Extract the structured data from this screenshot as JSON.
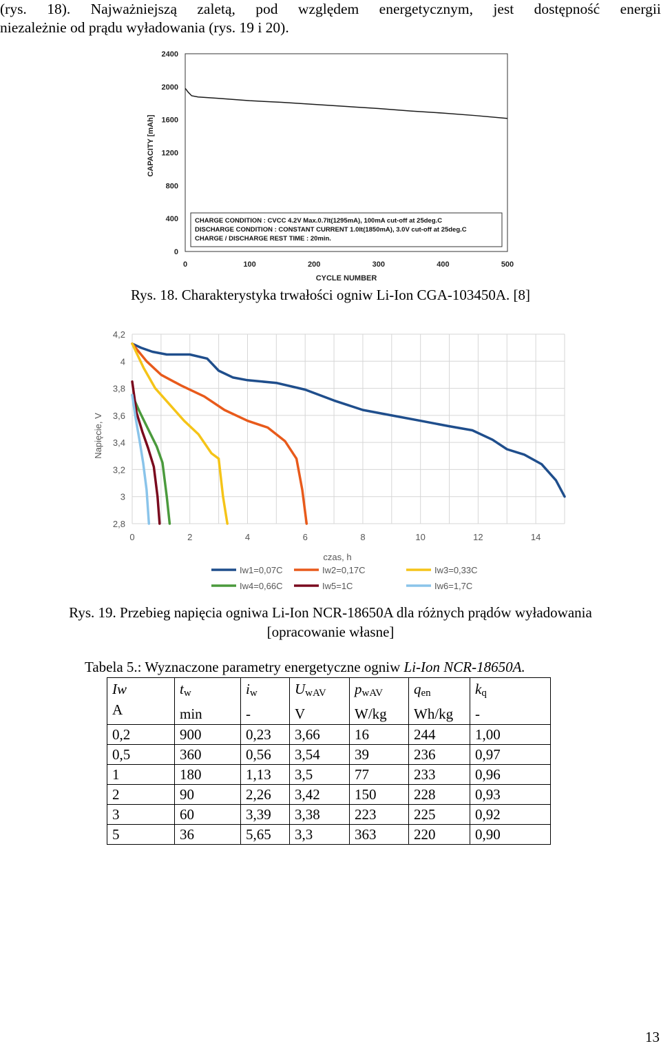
{
  "intro": {
    "line1_words": [
      "(rys.",
      "18).",
      "Najważniejszą",
      "zaletą,",
      "pod",
      "względem",
      "energetycznym,",
      "jest",
      "dostępność",
      "energii"
    ],
    "line2": "niezależnie od prądu wyładowania (rys. 19 i 20)."
  },
  "figure18": {
    "caption": "Rys. 18. Charakterystyka trwałości ogniw Li-Ion CGA-103450A. [8]",
    "chart_data": {
      "type": "line",
      "xlabel": "CYCLE NUMBER",
      "ylabel": "CAPACITY  [mAh]",
      "xlim": [
        0,
        500
      ],
      "ylim": [
        0,
        2400
      ],
      "x_ticks": [
        "0",
        "100",
        "200",
        "300",
        "400",
        "500"
      ],
      "y_ticks": [
        "0",
        "400",
        "800",
        "1200",
        "1600",
        "2000",
        "2400"
      ],
      "grid": false,
      "series": [
        {
          "x": [
            0,
            5,
            10,
            20,
            50,
            100,
            150,
            200,
            250,
            300,
            350,
            400,
            450,
            500
          ],
          "y": [
            1980,
            1930,
            1890,
            1875,
            1860,
            1830,
            1810,
            1785,
            1760,
            1735,
            1705,
            1680,
            1650,
            1615
          ],
          "color": "#1a1a1a"
        }
      ],
      "annotations": [
        "CHARGE CONDITION        : CVCC 4.2V Max.0.7It(1295mA), 100mA cut-off at 25deg.C",
        "DISCHARGE CONDITION : CONSTANT CURRENT 1.0It(1850mA), 3.0V cut-off at 25deg.C",
        "CHARGE / DISCHARGE REST TIME : 20min."
      ]
    }
  },
  "figure19": {
    "caption_line1": "Rys. 19. Przebieg napięcia ogniwa Li-Ion NCR-18650A dla różnych prądów wyładowania",
    "caption_line2": "[opracowanie własne]",
    "chart_data": {
      "type": "line",
      "xlabel": "czas, h",
      "ylabel": "Napięcie, V",
      "xlim": [
        0,
        15
      ],
      "ylim": [
        2.8,
        4.2
      ],
      "x_ticks": [
        "0",
        "2",
        "4",
        "6",
        "8",
        "10",
        "12",
        "14"
      ],
      "y_ticks": [
        "2,8",
        "3",
        "3,2",
        "3,4",
        "3,6",
        "3,8",
        "4",
        "4,2"
      ],
      "grid": true,
      "legend_position": "bottom",
      "series": [
        {
          "name": "Iw1=0,07C",
          "color": "#1f4e8c",
          "x": [
            0,
            0.3,
            0.7,
            1.2,
            2,
            2.6,
            3,
            3.5,
            4,
            5,
            6,
            7,
            8,
            9,
            10,
            11,
            11.8,
            12.5,
            13,
            13.6,
            14.2,
            14.7,
            15
          ],
          "y": [
            4.13,
            4.1,
            4.07,
            4.05,
            4.05,
            4.02,
            3.93,
            3.88,
            3.86,
            3.84,
            3.79,
            3.71,
            3.64,
            3.6,
            3.56,
            3.52,
            3.49,
            3.42,
            3.35,
            3.31,
            3.24,
            3.12,
            3.0
          ]
        },
        {
          "name": "Iw2=0,17C",
          "color": "#e85a1b",
          "x": [
            0,
            0.5,
            1,
            1.7,
            2.5,
            3.2,
            4,
            4.7,
            5.3,
            5.7,
            5.9,
            6.05
          ],
          "y": [
            4.13,
            4.0,
            3.9,
            3.82,
            3.74,
            3.64,
            3.56,
            3.51,
            3.41,
            3.28,
            3.05,
            2.8
          ]
        },
        {
          "name": "Iw3=0,33C",
          "color": "#f5c418",
          "x": [
            0,
            0.4,
            0.8,
            1.3,
            1.8,
            2.3,
            2.75,
            3.0,
            3.15,
            3.3
          ],
          "y": [
            4.13,
            3.95,
            3.8,
            3.68,
            3.56,
            3.46,
            3.32,
            3.28,
            3.0,
            2.8
          ]
        },
        {
          "name": "Iw4=0,66C",
          "color": "#4a9a3c",
          "x": [
            0,
            0.25,
            0.55,
            0.85,
            1.05,
            1.2,
            1.3
          ],
          "y": [
            3.75,
            3.63,
            3.5,
            3.37,
            3.25,
            3.0,
            2.8
          ]
        },
        {
          "name": "Iw5=1C",
          "color": "#7a0a1e",
          "x": [
            0,
            0.15,
            0.35,
            0.55,
            0.75,
            0.88,
            0.95
          ],
          "y": [
            3.85,
            3.62,
            3.48,
            3.36,
            3.22,
            3.0,
            2.8
          ]
        },
        {
          "name": "Iw6=1,7C",
          "color": "#8ac4ea",
          "x": [
            0,
            0.12,
            0.25,
            0.38,
            0.5,
            0.58
          ],
          "y": [
            3.75,
            3.58,
            3.42,
            3.25,
            3.05,
            2.8
          ]
        }
      ]
    }
  },
  "table5": {
    "caption_prefix": "Tabela 5.: Wyznaczone parametry energetyczne ogniw ",
    "caption_italic": "Li-Ion NCR-18650A.",
    "headers": [
      {
        "sym": "Iw",
        "sub": "",
        "unit": "A"
      },
      {
        "sym": "t",
        "sub": "w",
        "unit": "min"
      },
      {
        "sym": "i",
        "sub": "w",
        "unit": "-"
      },
      {
        "sym": "U",
        "sub": "wAV",
        "unit": "V"
      },
      {
        "sym": "p",
        "sub": "wAV",
        "unit": "W/kg"
      },
      {
        "sym": "q",
        "sub": "en",
        "unit": "Wh/kg"
      },
      {
        "sym": "k",
        "sub": "q",
        "unit": "-"
      }
    ],
    "rows": [
      [
        "0,2",
        "900",
        "0,23",
        "3,66",
        "16",
        "244",
        "1,00"
      ],
      [
        "0,5",
        "360",
        "0,56",
        "3,54",
        "39",
        "236",
        "0,97"
      ],
      [
        "1",
        "180",
        "1,13",
        "3,5",
        "77",
        "233",
        "0,96"
      ],
      [
        "2",
        "90",
        "2,26",
        "3,42",
        "150",
        "228",
        "0,93"
      ],
      [
        "3",
        "60",
        "3,39",
        "3,38",
        "223",
        "225",
        "0,92"
      ],
      [
        "5",
        "36",
        "5,65",
        "3,3",
        "363",
        "220",
        "0,90"
      ]
    ]
  },
  "page_number": "13"
}
